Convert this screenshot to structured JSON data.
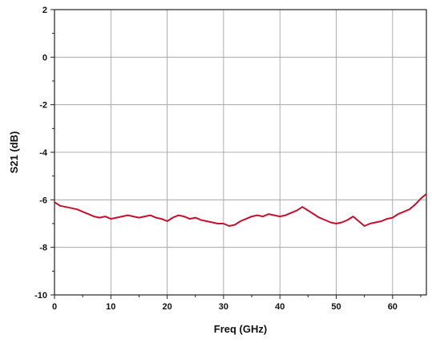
{
  "chart_data": {
    "type": "line",
    "title": "",
    "xlabel": "Freq  (GHz)",
    "ylabel": "S21  (dB)",
    "xlim": [
      0,
      66
    ],
    "ylim": [
      -10,
      2
    ],
    "xticks": [
      0,
      10,
      20,
      30,
      40,
      50,
      60
    ],
    "yticks": [
      -10,
      -8,
      -6,
      -4,
      -2,
      0,
      2
    ],
    "grid": true,
    "line_color": "#c8102e",
    "series": [
      {
        "x": [
          0,
          1,
          2,
          3,
          4,
          5,
          6,
          7,
          8,
          9,
          10,
          11,
          12,
          13,
          14,
          15,
          16,
          17,
          18,
          19,
          20,
          21,
          22,
          23,
          24,
          25,
          26,
          27,
          28,
          29,
          30,
          31,
          32,
          33,
          34,
          35,
          36,
          37,
          38,
          39,
          40,
          41,
          42,
          43,
          44,
          45,
          46,
          47,
          48,
          49,
          50,
          51,
          52,
          53,
          54,
          55,
          56,
          57,
          58,
          59,
          60,
          61,
          62,
          63,
          64,
          65,
          66
        ],
        "values": [
          -6.1,
          -6.25,
          -6.3,
          -6.35,
          -6.4,
          -6.5,
          -6.6,
          -6.7,
          -6.75,
          -6.7,
          -6.8,
          -6.75,
          -6.7,
          -6.65,
          -6.7,
          -6.75,
          -6.7,
          -6.65,
          -6.75,
          -6.8,
          -6.9,
          -6.75,
          -6.65,
          -6.7,
          -6.8,
          -6.75,
          -6.85,
          -6.9,
          -6.95,
          -7.0,
          -7.0,
          -7.1,
          -7.05,
          -6.9,
          -6.8,
          -6.7,
          -6.65,
          -6.7,
          -6.6,
          -6.65,
          -6.7,
          -6.65,
          -6.55,
          -6.45,
          -6.3,
          -6.45,
          -6.6,
          -6.75,
          -6.85,
          -6.95,
          -7.0,
          -6.95,
          -6.85,
          -6.7,
          -6.9,
          -7.1,
          -7.0,
          -6.95,
          -6.9,
          -6.8,
          -6.75,
          -6.6,
          -6.5,
          -6.4,
          -6.2,
          -5.95,
          -5.75
        ]
      }
    ]
  }
}
